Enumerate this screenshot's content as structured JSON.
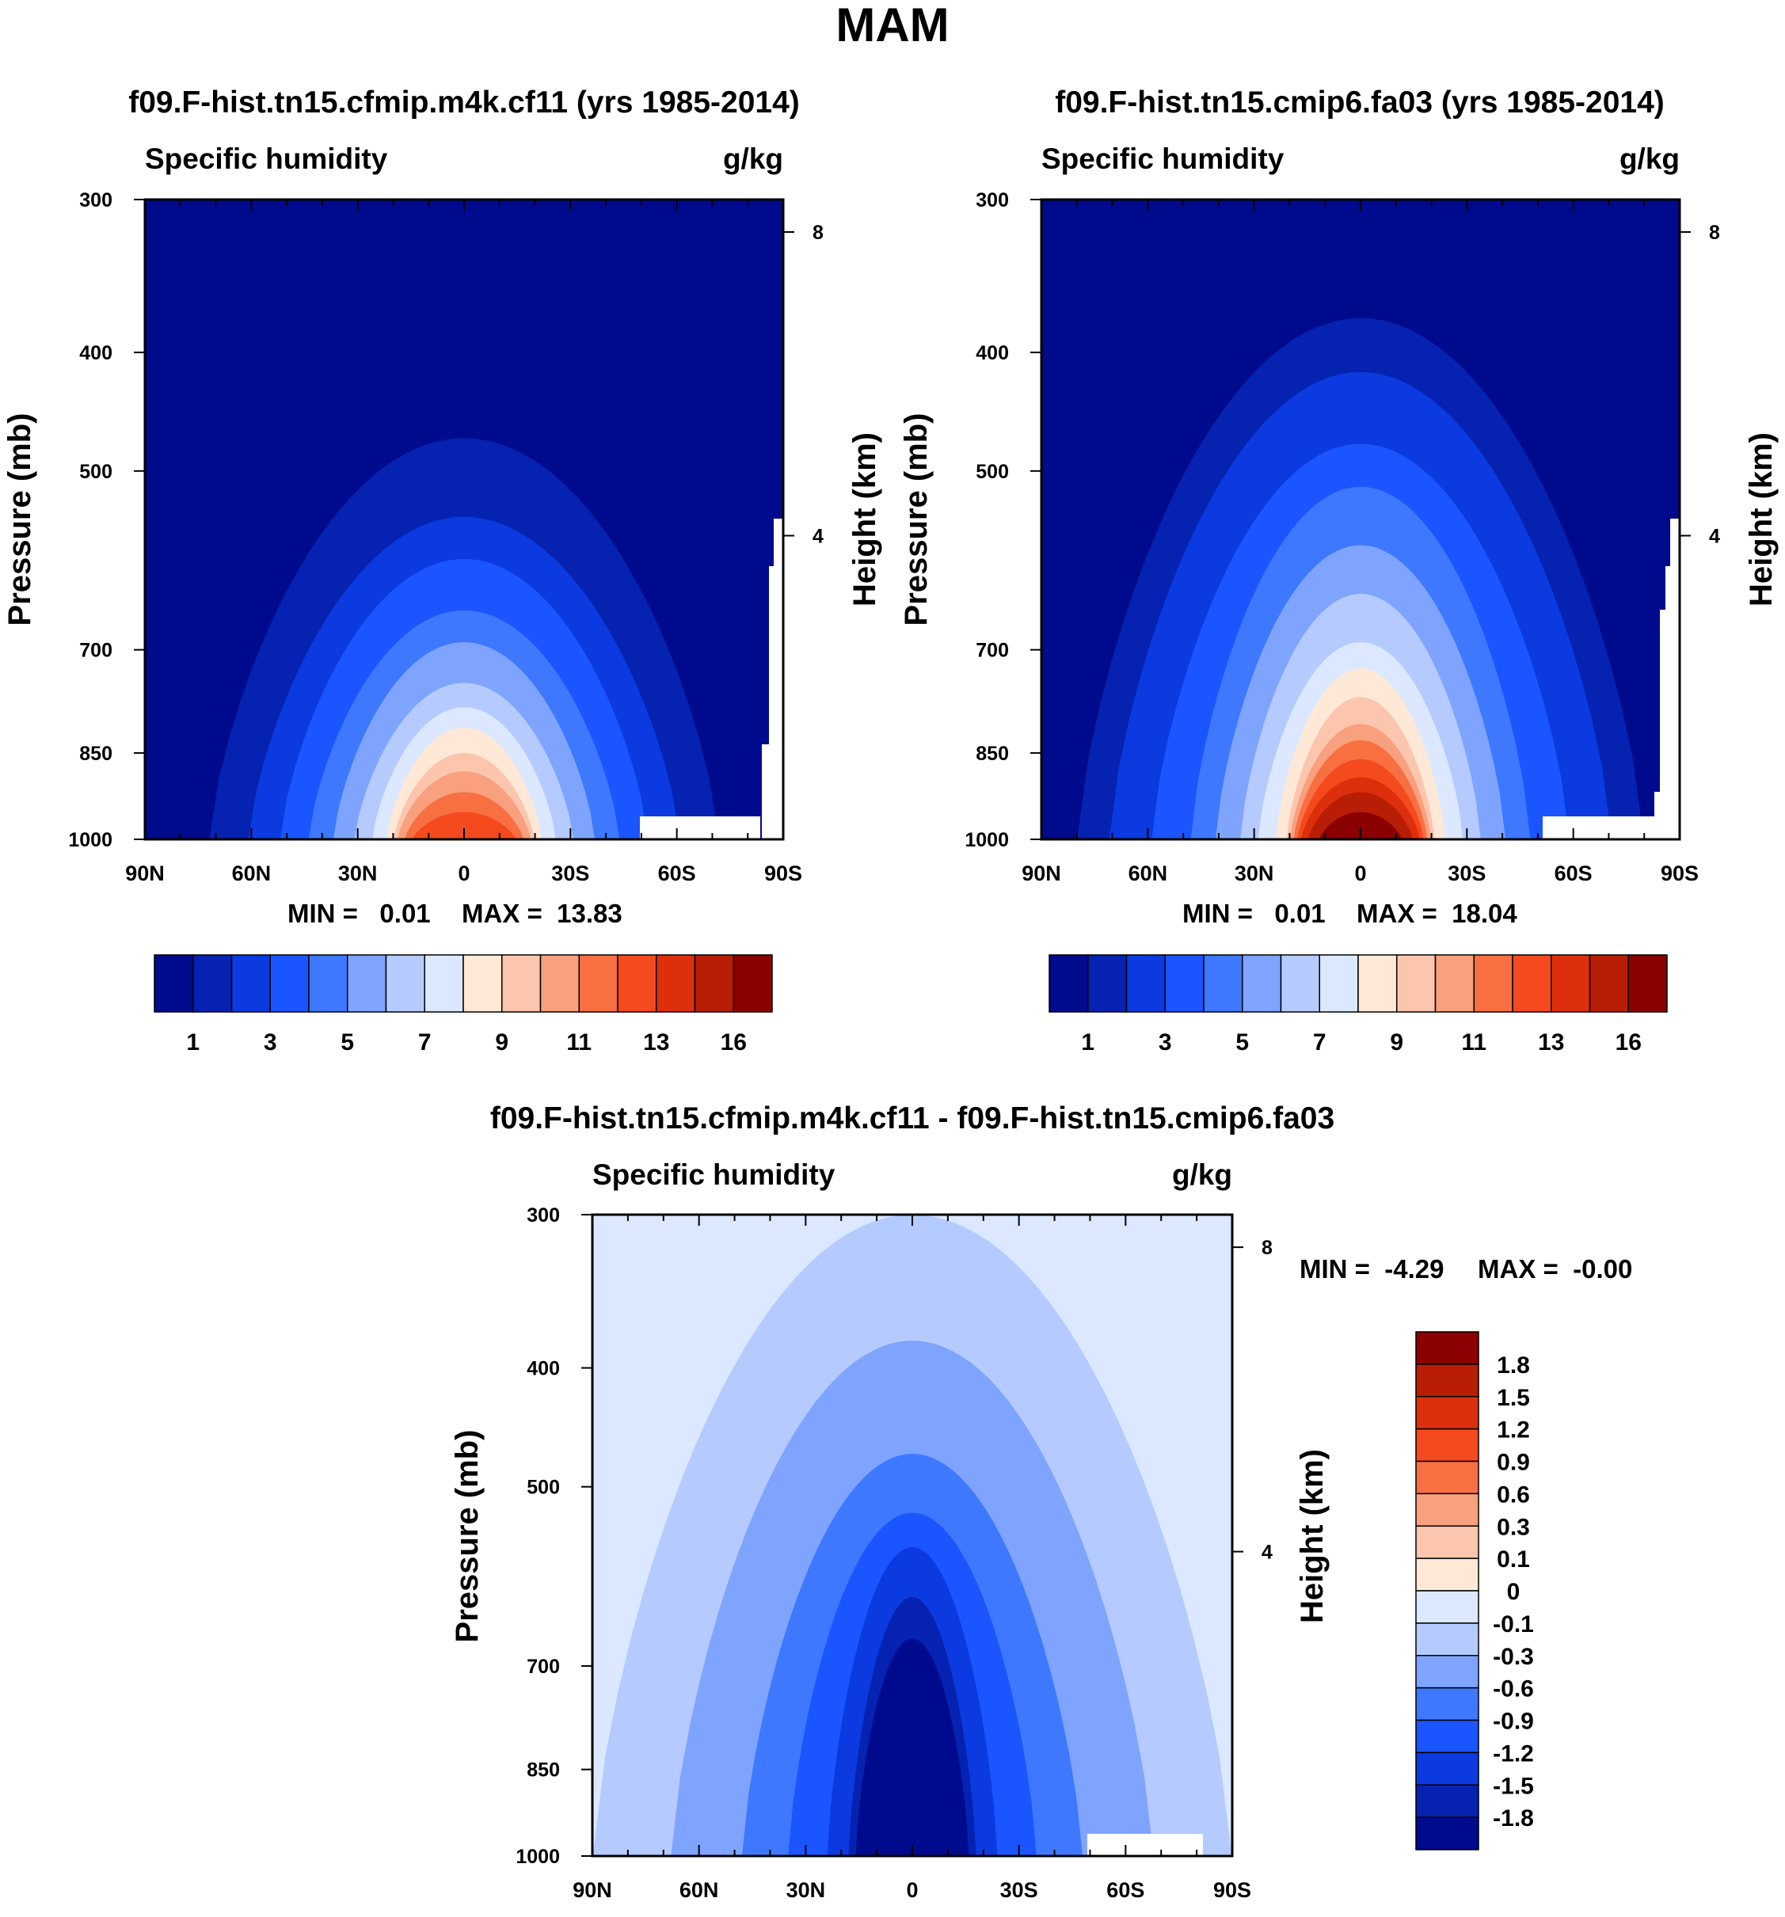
{
  "figure": {
    "title": "MAM",
    "colors": {
      "seq": [
        "#000a8c",
        "#0522b0",
        "#0a3ae0",
        "#1a55ff",
        "#3d78ff",
        "#7fa4ff",
        "#b5cbff",
        "#dbe8ff",
        "#ffe9d6",
        "#fcc6ae",
        "#f9a07e",
        "#f86f42",
        "#f44a1e",
        "#de2f0c",
        "#b81d06",
        "#8b0000"
      ],
      "white": "#ffffff"
    }
  },
  "chart_data": [
    {
      "type": "contour",
      "title": "f09.F-hist.tn15.cfmip.m4k.cf11 (yrs 1985-2014)",
      "variable": "Specific humidity",
      "units": "g/kg",
      "xlabel": "",
      "ylabel": "Pressure (mb)",
      "y2label": "Height (km)",
      "x_ticks": [
        "90N",
        "60N",
        "30N",
        "0",
        "30S",
        "60S",
        "90S"
      ],
      "y_ticks": [
        "300",
        "400",
        "500",
        "700",
        "850",
        "1000"
      ],
      "y2_ticks": [
        "8",
        "4"
      ],
      "min_label": "MIN =   0.01",
      "max_label": "MAX =  13.83",
      "colorbar_labels": [
        "1",
        "3",
        "5",
        "7",
        "9",
        "11",
        "13",
        "16"
      ],
      "levels_peak_pressure_mb": [
        470,
        545,
        590,
        650,
        690,
        745,
        780,
        810,
        850,
        880,
        915,
        950
      ],
      "levels_half_width_deg": [
        72,
        61,
        52,
        44,
        37,
        31,
        26,
        22,
        20,
        19,
        17,
        15
      ]
    },
    {
      "type": "contour",
      "title": "f09.F-hist.tn15.cmip6.fa03 (yrs 1985-2014)",
      "variable": "Specific humidity",
      "units": "g/kg",
      "xlabel": "",
      "ylabel": "Pressure (mb)",
      "y2label": "Height (km)",
      "x_ticks": [
        "90N",
        "60N",
        "30N",
        "0",
        "30S",
        "60S",
        "90S"
      ],
      "y_ticks": [
        "300",
        "400",
        "500",
        "700",
        "850",
        "1000"
      ],
      "y2_ticks": [
        "8",
        "4"
      ],
      "min_label": "MIN =   0.01",
      "max_label": "MAX =  18.04",
      "colorbar_labels": [
        "1",
        "3",
        "5",
        "7",
        "9",
        "11",
        "13",
        "16"
      ],
      "levels_peak_pressure_mb": [
        375,
        415,
        475,
        515,
        575,
        630,
        690,
        725,
        765,
        805,
        830,
        860,
        890,
        915,
        950
      ],
      "levels_half_width_deg": [
        80,
        71,
        59,
        48,
        41,
        34,
        29,
        24,
        21,
        20,
        19,
        18,
        17,
        15,
        12
      ]
    },
    {
      "type": "contour",
      "title": "f09.F-hist.tn15.cfmip.m4k.cf11 - f09.F-hist.tn15.cmip6.fa03",
      "variable": "Specific humidity",
      "units": "g/kg",
      "xlabel": "",
      "ylabel": "Pressure (mb)",
      "y2label": "Height (km)",
      "x_ticks": [
        "90N",
        "60N",
        "30N",
        "0",
        "30S",
        "60S",
        "90S"
      ],
      "y_ticks": [
        "300",
        "400",
        "500",
        "700",
        "850",
        "1000"
      ],
      "y2_ticks": [
        "8",
        "4"
      ],
      "min_label": "MIN =  -4.29",
      "max_label": "MAX =  -0.00",
      "colorbar_labels": [
        "1.8",
        "1.5",
        "1.2",
        "0.9",
        "0.6",
        "0.3",
        "0.1",
        "0",
        "-0.1",
        "-0.3",
        "-0.6",
        "-0.9",
        "-1.2",
        "-1.5",
        "-1.8"
      ],
      "levels_peak_pressure_mb": [
        300,
        380,
        470,
        525,
        560,
        615,
        665
      ],
      "levels_half_width_deg": [
        90,
        68,
        48,
        35,
        24,
        18,
        16
      ]
    }
  ]
}
